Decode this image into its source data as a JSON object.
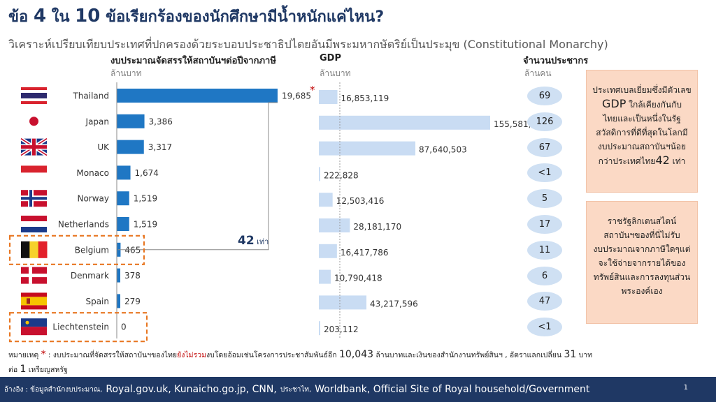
{
  "header": {
    "title_prefix": "ข้อ",
    "point_number": "4",
    "title_middle": "ใน",
    "point_total": "10",
    "title_suffix": "ข้อเรียกร้องของนักศึกษามีน้ำหนักแค่ไหน?",
    "subtitle": "วิเคราะห์เปรียบเทียบประเทศที่ปกครองด้วยระบอบประชาธิปไตยอันมีพระมหากษัตริย์เป็นประมุข (Constitutional Monarchy)"
  },
  "columns": {
    "budget_title": "งบประมาณจัดสรรให้สถาบันฯต่อปีจากภาษี",
    "budget_unit": "ล้านบาท",
    "gdp_title": "GDP",
    "gdp_unit": "ล้านบาท",
    "pop_title": "จำนวนประชากร",
    "pop_unit": "ล้านคน"
  },
  "chart_data": [
    {
      "type": "bar",
      "title": "งบประมาณจัดสรรให้สถาบันฯต่อปีจากภาษี",
      "unit": "ล้านบาท",
      "categories": [
        "Thailand",
        "Japan",
        "UK",
        "Monaco",
        "Norway",
        "Netherlands",
        "Belgium",
        "Denmark",
        "Spain",
        "Liechtenstein"
      ],
      "values": [
        19685,
        3386,
        3317,
        1674,
        1519,
        1519,
        465,
        378,
        279,
        0
      ],
      "labels": [
        "19,685",
        "3,386",
        "3,317",
        "1,674",
        "1,519",
        "1,519",
        "465",
        "378",
        "279",
        "0"
      ],
      "color": "#1f77c4",
      "annotation_marker": "*",
      "comparison_label": "42 เท่า",
      "highlighted": [
        "Belgium",
        "Liechtenstein"
      ]
    },
    {
      "type": "bar",
      "title": "GDP",
      "unit": "ล้านบาท",
      "categories": [
        "Thailand",
        "Japan",
        "UK",
        "Monaco",
        "Norway",
        "Netherlands",
        "Belgium",
        "Denmark",
        "Spain",
        "Liechtenstein"
      ],
      "values": [
        16853119,
        155581839,
        87640503,
        222828,
        12503416,
        28181170,
        16417786,
        10790418,
        43217596,
        203112
      ],
      "labels": [
        "16,853,119",
        "155,581,839",
        "87,640,503",
        "222,828",
        "12,503,416",
        "28,181,170",
        "16,417,786",
        "10,790,418",
        "43,217,596",
        "203,112"
      ],
      "color": "#c9dcf3"
    },
    {
      "type": "table",
      "title": "จำนวนประชากร",
      "unit": "ล้านคน",
      "categories": [
        "Thailand",
        "Japan",
        "UK",
        "Monaco",
        "Norway",
        "Netherlands",
        "Belgium",
        "Denmark",
        "Spain",
        "Liechtenstein"
      ],
      "values": [
        "69",
        "126",
        "67",
        "<1",
        "5",
        "17",
        "11",
        "6",
        "47",
        "<1"
      ]
    }
  ],
  "colors": {
    "title": "#1f3864",
    "budget_bar": "#1f77c4",
    "gdp_bar": "#c9dcf3",
    "pop_oval": "#cfe0f3",
    "note_box": "#fbd9c5",
    "highlight_dash": "#e87722",
    "footer": "#1f3864",
    "marker": "#c00000"
  },
  "flag_icons": [
    "thailand-flag-icon",
    "japan-flag-icon",
    "uk-flag-icon",
    "monaco-flag-icon",
    "norway-flag-icon",
    "netherlands-flag-icon",
    "belgium-flag-icon",
    "denmark-flag-icon",
    "spain-flag-icon",
    "liechtenstein-flag-icon"
  ],
  "notes": {
    "box1_line1": "ประเทศเบลเยี่ยมซึ่งมีตัวเลข",
    "box1_line2_hl": "GDP",
    "box1_line2": "ใกล้เคียงกันกับ",
    "box1_line3": "ไทยและเป็นหนึ่งในรัฐ",
    "box1_line4": "สวัสดิการที่ดีที่สุดในโลกมี",
    "box1_line5": "งบประมาณสถาบันฯน้อย",
    "box1_line6": "กว่าประเทศไทย",
    "box1_line6_hl": "42",
    "box1_line6_end": "เท่า",
    "box2_line1": "ราชรัฐลิกเตนสไตน์",
    "box2_line2": "สถาบันฯของที่นี่ไม่รับ",
    "box2_line3": "งบประมาณจากภาษีใดๆแต่",
    "box2_line4": "จะใช้จ่ายจากรายได้ของ",
    "box2_line5": "ทรัพย์สินและการลงทุนส่วน",
    "box2_line6": "พระองค์เอง"
  },
  "footnote": {
    "label": "หมายเหตุ",
    "star": "*",
    "text_a": ": งบประมาณที่จัดสรรให้สถาบันฯของไทย",
    "red_text": "ยังไม่รวม",
    "text_b": "งบโดยอ้อมเช่นโครงการประชาสัมพันธ์อีก",
    "amount": "10,043",
    "text_c": "ล้านบาทและเงินของสำนักงานทรัพย์สินฯ , อัตราแลกเปลี่ยน",
    "rate": "31",
    "text_d": "บาท",
    "text_e": "ต่อ",
    "unit_num": "1",
    "text_f": "เหรียญสหรัฐ"
  },
  "footer": {
    "ref_label": "อ้างอิง : ข้อมูลสำนักงบประมาณ,",
    "src1": "Royal.gov.uk, Kunaicho.go.jp, CNN,",
    "src2": "ประชาไท,",
    "src3": "Worldbank, Official Site of Royal household/Government",
    "page": "1"
  }
}
